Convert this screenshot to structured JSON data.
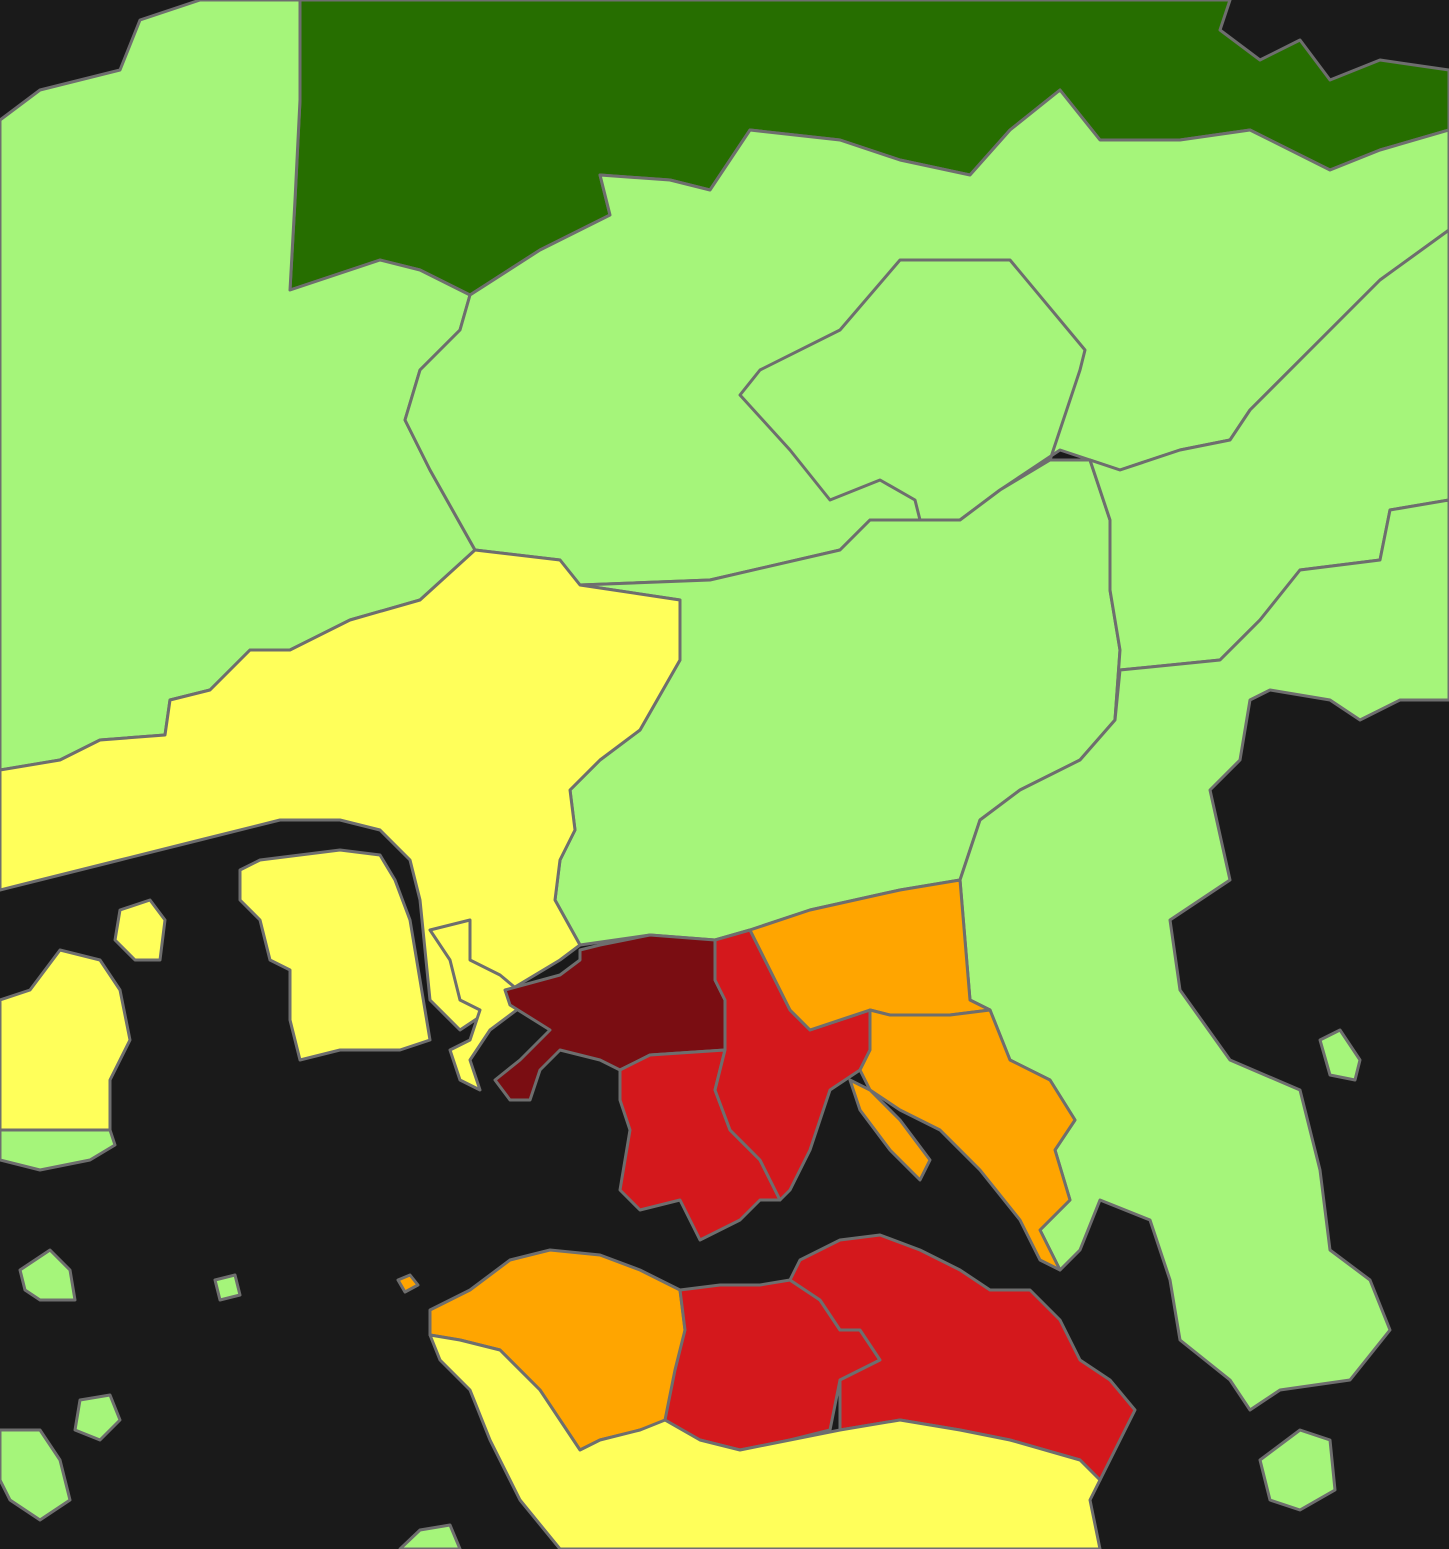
{
  "map": {
    "background_color": "#1a1a1a",
    "border_color": "#6e6e6e",
    "color_scale": {
      "darkest_green": "#266e00",
      "light_green": "#a5f57a",
      "yellow": "#ffff5a",
      "orange": "#ffa500",
      "red": "#d4181c",
      "dark_red": "#7a0d12"
    },
    "regions": [
      {
        "id": "north-hills",
        "fill_class": "darkest_green"
      },
      {
        "id": "northwest-territory",
        "fill_class": "light_green"
      },
      {
        "id": "central-territory",
        "fill_class": "light_green"
      },
      {
        "id": "northeast-territory",
        "fill_class": "light_green"
      },
      {
        "id": "east-peninsula",
        "fill_class": "light_green"
      },
      {
        "id": "sha-tin-area",
        "fill_class": "light_green"
      },
      {
        "id": "west-coast-yellow",
        "fill_class": "yellow"
      },
      {
        "id": "reclaimed-island",
        "fill_class": "yellow"
      },
      {
        "id": "west-island-yellow",
        "fill_class": "yellow"
      },
      {
        "id": "container-port",
        "fill_class": "yellow"
      },
      {
        "id": "dark-red-district",
        "fill_class": "dark_red"
      },
      {
        "id": "central-red-west",
        "fill_class": "red"
      },
      {
        "id": "central-red-east",
        "fill_class": "red"
      },
      {
        "id": "orange-north",
        "fill_class": "orange"
      },
      {
        "id": "orange-east",
        "fill_class": "orange"
      },
      {
        "id": "island-orange",
        "fill_class": "orange"
      },
      {
        "id": "island-red-west",
        "fill_class": "red"
      },
      {
        "id": "island-red-east",
        "fill_class": "red"
      },
      {
        "id": "island-south-yellow",
        "fill_class": "yellow"
      },
      {
        "id": "small-islands",
        "fill_class": "light_green"
      }
    ]
  }
}
